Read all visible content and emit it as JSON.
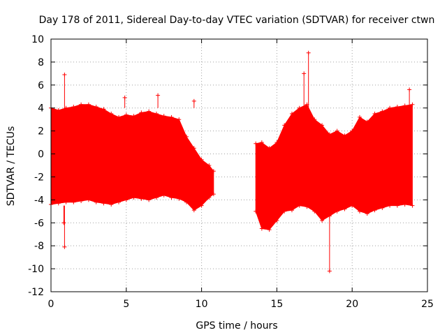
{
  "chart_data": {
    "type": "scatter",
    "title": "Day 178 of 2011, Sidereal Day-to-day VTEC variation (SDTVAR) for receiver ctwn",
    "xlabel": "GPS time / hours",
    "ylabel": "SDTVAR / TECUs",
    "xlim": [
      0,
      25
    ],
    "ylim": [
      -12,
      10
    ],
    "x_ticks": [
      0,
      5,
      10,
      15,
      20,
      25
    ],
    "y_ticks": [
      -12,
      -10,
      -8,
      -6,
      -4,
      -2,
      0,
      2,
      4,
      6,
      8,
      10
    ],
    "grid": true,
    "marker": "+",
    "colors": {
      "series": "#ff0000",
      "grid": "#a0a0a0",
      "axes": "#000000"
    },
    "series": [
      {
        "name": "SDTVAR",
        "envelope_hours": [
          0,
          0.5,
          1,
          1.5,
          2,
          2.5,
          3,
          3.5,
          4,
          4.5,
          5,
          5.5,
          6,
          6.5,
          7,
          7.5,
          8,
          8.5,
          9,
          9.5,
          10,
          10.5,
          10.8
        ],
        "envelope_upper": [
          4.0,
          3.8,
          4.0,
          4.1,
          4.3,
          4.3,
          4.1,
          3.9,
          3.5,
          3.2,
          3.4,
          3.3,
          3.6,
          3.7,
          3.5,
          3.3,
          3.2,
          3.0,
          1.5,
          0.5,
          -0.5,
          -1.0,
          -1.5
        ],
        "envelope_lower": [
          -4.4,
          -4.3,
          -4.2,
          -4.2,
          -4.1,
          -4.0,
          -4.2,
          -4.3,
          -4.4,
          -4.2,
          -4.0,
          -3.8,
          -3.9,
          -4.0,
          -3.8,
          -3.6,
          -3.8,
          -3.9,
          -4.2,
          -4.9,
          -4.5,
          -3.8,
          -3.5
        ],
        "envelope2_hours": [
          13.6,
          14.0,
          14.5,
          15.0,
          15.5,
          16.0,
          16.5,
          17.0,
          17.5,
          18.0,
          18.5,
          19.0,
          19.5,
          20.0,
          20.5,
          21.0,
          21.5,
          22.0,
          22.5,
          23.0,
          23.5,
          24.0
        ],
        "envelope2_upper": [
          0.9,
          1.0,
          0.5,
          1.0,
          2.5,
          3.5,
          4.0,
          4.3,
          3.0,
          2.5,
          1.7,
          2.0,
          1.6,
          2.0,
          3.2,
          2.8,
          3.5,
          3.7,
          4.0,
          4.1,
          4.2,
          4.3
        ],
        "envelope2_lower": [
          -5.0,
          -6.5,
          -6.6,
          -5.8,
          -5.0,
          -4.9,
          -4.5,
          -4.6,
          -5.0,
          -5.8,
          -5.4,
          -5.0,
          -4.8,
          -4.5,
          -5.0,
          -5.2,
          -4.9,
          -4.7,
          -4.5,
          -4.5,
          -4.4,
          -4.5
        ],
        "outlier_points": [
          {
            "x": 0.9,
            "y": 6.9
          },
          {
            "x": 0.9,
            "y": -8.1
          },
          {
            "x": 0.85,
            "y": -6.0
          },
          {
            "x": 9.5,
            "y": 4.6
          },
          {
            "x": 17.1,
            "y": 8.8
          },
          {
            "x": 16.8,
            "y": 7.0
          },
          {
            "x": 18.5,
            "y": -10.2
          },
          {
            "x": 23.8,
            "y": 5.6
          },
          {
            "x": 4.9,
            "y": 4.9
          },
          {
            "x": 7.1,
            "y": 5.1
          }
        ]
      }
    ]
  }
}
